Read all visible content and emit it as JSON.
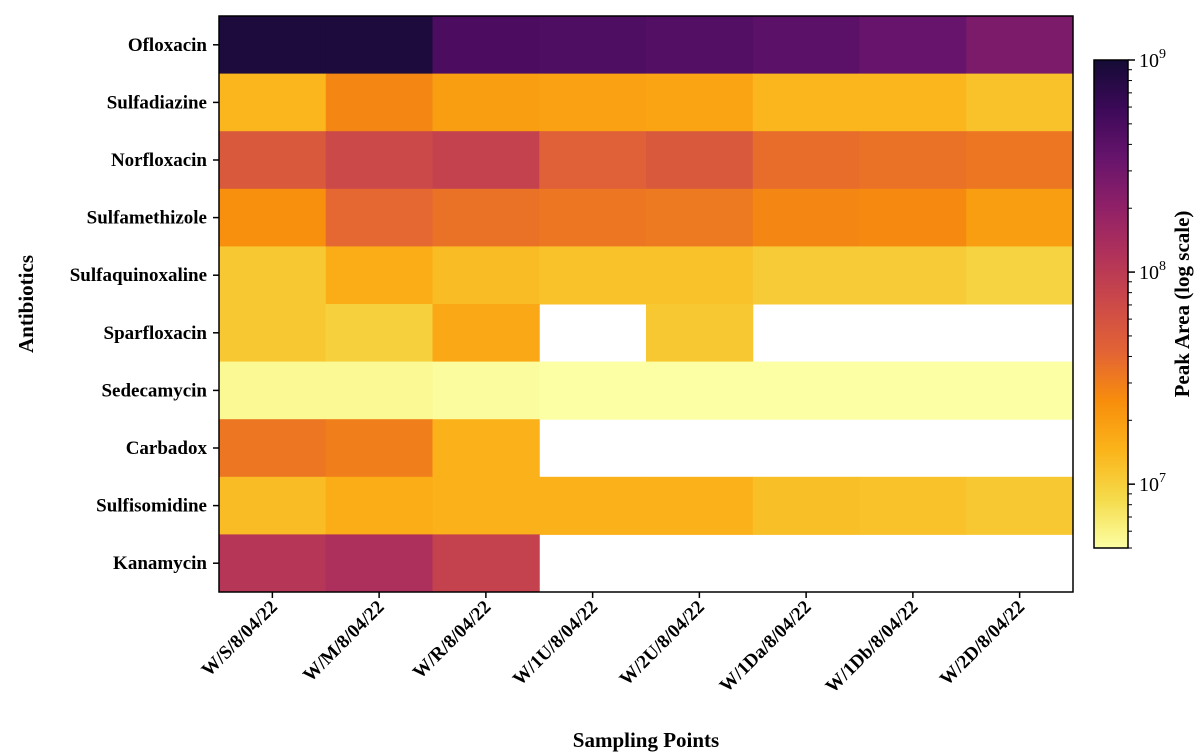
{
  "chart_data": {
    "type": "heatmap",
    "xlabel": "Sampling Points",
    "ylabel": "Antibiotics",
    "colorbar_label": "Peak Area (log scale)",
    "colorbar_scale": "log",
    "colormap": "inferno_r",
    "colorbar_range": [
      5000000,
      1000000000
    ],
    "colorbar_ticks": [
      {
        "value": 1000000000,
        "base": "10",
        "exp": "9"
      },
      {
        "value": 100000000,
        "base": "10",
        "exp": "8"
      },
      {
        "value": 10000000,
        "base": "10",
        "exp": "7"
      }
    ],
    "x_categories": [
      "W/S/8/04/22",
      "W/M/8/04/22",
      "W/R/8/04/22",
      "W/1U/8/04/22",
      "W/2U/8/04/22",
      "W/1Da/8/04/22",
      "W/1Db/8/04/22",
      "W/2D/8/04/22"
    ],
    "y_categories": [
      "Ofloxacin",
      "Sulfadiazine",
      "Norfloxacin",
      "Sulfamethizole",
      "Sulfaquinoxaline",
      "Sparfloxacin",
      "Sedecamycin",
      "Carbadox",
      "Sulfisomidine",
      "Kanamycin"
    ],
    "values": [
      [
        900000000,
        900000000,
        480000000,
        470000000,
        440000000,
        400000000,
        340000000,
        260000000
      ],
      [
        14000000,
        27000000,
        20000000,
        19000000,
        18000000,
        14000000,
        14000000,
        12000000
      ],
      [
        52000000,
        72000000,
        85000000,
        45000000,
        52000000,
        37000000,
        35000000,
        33000000
      ],
      [
        24000000,
        40000000,
        35000000,
        33000000,
        32000000,
        27000000,
        26000000,
        20000000
      ],
      [
        11000000,
        16000000,
        13000000,
        12000000,
        12000000,
        10500000,
        10500000,
        9500000
      ],
      [
        11000000,
        9800000,
        17000000,
        null,
        11000000,
        null,
        null,
        null
      ],
      [
        5500000,
        5500000,
        5200000,
        5000000,
        4900000,
        4800000,
        4800000,
        4700000
      ],
      [
        33000000,
        30000000,
        15000000,
        null,
        null,
        null,
        null,
        null
      ],
      [
        13000000,
        16000000,
        15000000,
        15000000,
        15000000,
        12500000,
        12000000,
        11000000
      ],
      [
        110000000,
        130000000,
        85000000,
        null,
        null,
        null,
        null,
        null
      ]
    ]
  }
}
